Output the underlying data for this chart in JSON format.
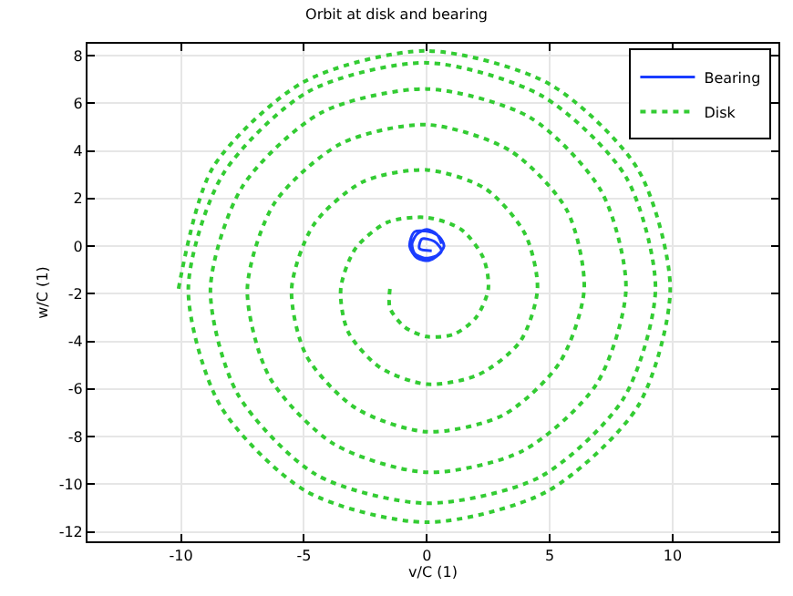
{
  "chart_data": {
    "type": "line",
    "title": "Orbit at disk and bearing",
    "xlabel": "v/C (1)",
    "ylabel": "w/C (1)",
    "xlim": [
      -13.8,
      14.3
    ],
    "ylim": [
      -12.4,
      8.5
    ],
    "xticks": [
      -10,
      -5,
      0,
      5,
      10
    ],
    "yticks": [
      -12,
      -10,
      -8,
      -6,
      -4,
      -2,
      0,
      2,
      4,
      6,
      8
    ],
    "grid": true,
    "legend": "top right",
    "marker": "none",
    "series": [
      {
        "name": "Bearing",
        "color": "#1a3cff",
        "line_style": "solid",
        "x": [
          0.6,
          0.4,
          0,
          -0.4,
          -0.6,
          -0.5,
          -0.1,
          0.4,
          0.7,
          0.5,
          0.1,
          -0.5,
          -0.7,
          -0.4,
          0.1,
          0.6,
          0.3,
          -0.2,
          -0.3,
          0.2
        ],
        "values": [
          0.1,
          0.5,
          0.7,
          0.5,
          0.1,
          -0.3,
          -0.5,
          -0.4,
          0,
          0.4,
          0.6,
          0.6,
          0,
          -0.5,
          -0.6,
          -0.2,
          0.2,
          0.3,
          -0.1,
          -0.2
        ]
      },
      {
        "name": "Disk",
        "color": "#33cc33",
        "line_style": "dotted",
        "x": [
          -1.5,
          -1.5,
          -0.9,
          0,
          1.1,
          2,
          2.5,
          2.3,
          1.4,
          0,
          -1.6,
          -2.9,
          -3.5,
          -3.2,
          -1.9,
          0,
          2.1,
          3.8,
          4.5,
          4,
          2.4,
          0,
          -2.6,
          -4.6,
          -5.5,
          -4.9,
          -2.9,
          0,
          3.1,
          5.4,
          6.4,
          5.7,
          3.4,
          0,
          -3.5,
          -6.2,
          -7.3,
          -6.4,
          -3.8,
          0,
          3.9,
          6.9,
          8.1,
          7.1,
          4.2,
          0,
          -4.3,
          -7.5,
          -8.8,
          -7.7,
          -4.5,
          0,
          4.6,
          8,
          9.3,
          8.1,
          4.7,
          0,
          -4.8,
          -8.3,
          -9.7,
          -8.4,
          -4.9,
          0,
          4.9,
          8.6,
          9.9,
          8.6,
          5,
          0,
          -5,
          -8.7,
          -10.1
        ],
        "values": [
          -1.8,
          -2.6,
          -3.4,
          -3.8,
          -3.7,
          -3,
          -1.8,
          -0.5,
          0.7,
          1.2,
          1,
          -0.1,
          -1.8,
          -3.6,
          -5.1,
          -5.8,
          -5.4,
          -4,
          -1.8,
          0.5,
          2.4,
          3.2,
          2.7,
          0.9,
          -1.8,
          -4.6,
          -6.8,
          -7.8,
          -7.1,
          -4.9,
          -1.8,
          1.5,
          4,
          5.1,
          4.3,
          1.8,
          -1.8,
          -5.5,
          -8.3,
          -9.5,
          -8.6,
          -5.8,
          -1.8,
          2.3,
          5.4,
          6.6,
          5.6,
          2.5,
          -1.8,
          -6.2,
          -9.6,
          -10.8,
          -9.7,
          -6.4,
          -1.8,
          2.9,
          6.3,
          7.7,
          6.5,
          3,
          -1.8,
          -6.7,
          -10.3,
          -11.6,
          -10.3,
          -6.7,
          -1.8,
          3.2,
          6.8,
          8.2,
          6.9,
          3.3,
          -1.8
        ]
      }
    ]
  }
}
